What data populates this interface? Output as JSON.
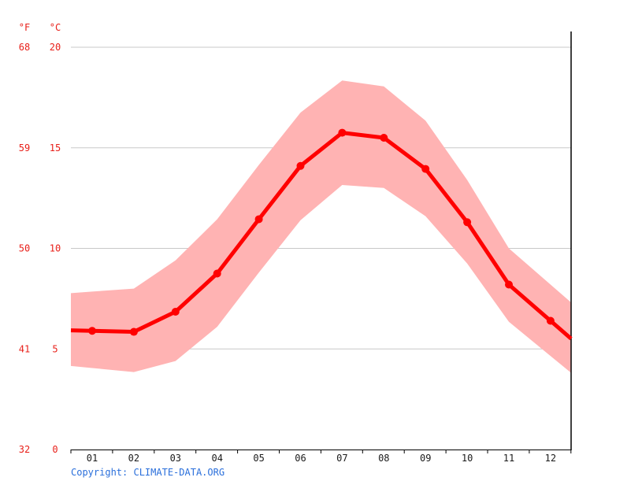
{
  "chart_data": {
    "type": "line",
    "categories": [
      "01",
      "02",
      "03",
      "04",
      "05",
      "06",
      "07",
      "08",
      "09",
      "10",
      "11",
      "12"
    ],
    "units": {
      "left": "°F",
      "right": "°C"
    },
    "ylim_c": [
      0,
      20
    ],
    "yticks_c": [
      "0",
      "5",
      "10",
      "15",
      "20"
    ],
    "yticks_f": [
      "32",
      "41",
      "50",
      "59",
      "68"
    ],
    "series": [
      {
        "values": [
          5.9,
          5.85,
          6.85,
          8.75,
          11.45,
          14.1,
          15.75,
          15.5,
          13.95,
          11.3,
          8.2,
          6.4
        ]
      }
    ],
    "band": {
      "upper": [
        7.85,
        8.0,
        9.4,
        11.45,
        14.15,
        16.75,
        18.35,
        18.05,
        16.35,
        13.4,
        10.0,
        8.2
      ],
      "lower": [
        4.05,
        3.85,
        4.4,
        6.1,
        8.8,
        11.4,
        13.15,
        13.0,
        11.6,
        9.25,
        6.35,
        4.65
      ]
    },
    "grid": true,
    "colors": {
      "line": "#ff0000",
      "band": "#ffb3b3",
      "grid": "#c8c8c8",
      "axis_text": "#e8201a"
    }
  },
  "copyright": "Copyright: CLIMATE-DATA.ORG"
}
